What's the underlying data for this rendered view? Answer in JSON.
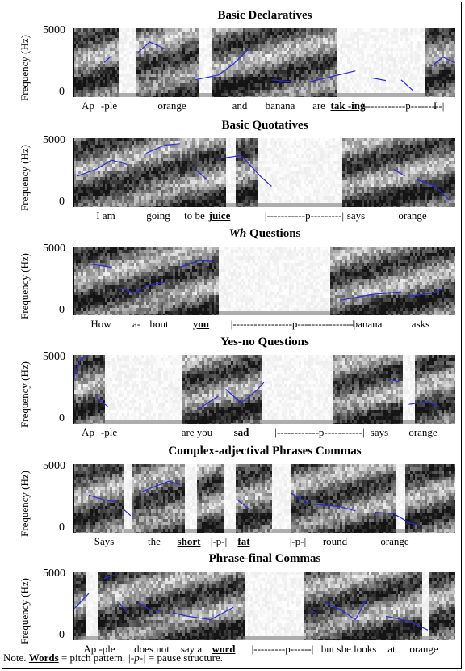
{
  "note": {
    "prefix": "Note.",
    "words": "Words",
    "eq1": "= pitch pattern.",
    "pause": "|-p-|",
    "eq2": "= pause structure."
  },
  "y_axis": {
    "label": "Frequency (Hz)",
    "top_tick": "5000",
    "bottom_tick": "0"
  },
  "panels": [
    {
      "title": "Basic Declaratives",
      "words": [
        {
          "text": "Ap",
          "emph": false
        },
        {
          "text": "-ple",
          "emph": false
        },
        {
          "text": "orange",
          "emph": false
        },
        {
          "text": "and",
          "emph": false
        },
        {
          "text": "banana",
          "emph": false
        },
        {
          "text": "are",
          "emph": false
        },
        {
          "text": "tak -ing",
          "emph": true
        },
        {
          "text": "|------------p---------|",
          "emph": false
        },
        {
          "text": "I",
          "emph": false
        }
      ]
    },
    {
      "title": "Basic Quotatives",
      "words": [
        {
          "text": "I am",
          "emph": false
        },
        {
          "text": "going",
          "emph": false
        },
        {
          "text": "to be",
          "emph": false
        },
        {
          "text": "juice",
          "emph": true
        },
        {
          "text": "|-----------p---------|",
          "emph": false
        },
        {
          "text": "says",
          "emph": false
        },
        {
          "text": "orange",
          "emph": false
        }
      ]
    },
    {
      "title": "Wh Questions",
      "words": [
        {
          "text": "How",
          "emph": false
        },
        {
          "text": "a-",
          "emph": false
        },
        {
          "text": "bout",
          "emph": false
        },
        {
          "text": "you",
          "emph": true
        },
        {
          "text": "|-----------------p----------------|",
          "emph": false
        },
        {
          "text": "banana",
          "emph": false
        },
        {
          "text": "asks",
          "emph": false
        }
      ]
    },
    {
      "title": "Yes-no Questions",
      "words": [
        {
          "text": "Ap",
          "emph": false
        },
        {
          "text": "-ple",
          "emph": false
        },
        {
          "text": "are you",
          "emph": false
        },
        {
          "text": "sad",
          "emph": true
        },
        {
          "text": "|------------p-----------|",
          "emph": false
        },
        {
          "text": "says",
          "emph": false
        },
        {
          "text": "orange",
          "emph": false
        }
      ]
    },
    {
      "title": "Complex-adjectival Phrases Commas",
      "words": [
        {
          "text": "Says",
          "emph": false
        },
        {
          "text": "the",
          "emph": false
        },
        {
          "text": "short",
          "emph": true
        },
        {
          "text": "|-p-|",
          "emph": false
        },
        {
          "text": "fat",
          "emph": true
        },
        {
          "text": "|-p-|",
          "emph": false
        },
        {
          "text": "round",
          "emph": false
        },
        {
          "text": "orange",
          "emph": false
        }
      ]
    },
    {
      "title": "Phrase-final Commas",
      "words": [
        {
          "text": "Ap -ple",
          "emph": false
        },
        {
          "text": "does not",
          "emph": false
        },
        {
          "text": "say a",
          "emph": false
        },
        {
          "text": "word",
          "emph": true
        },
        {
          "text": "|---------p------|",
          "emph": false
        },
        {
          "text": "but she looks",
          "emph": false
        },
        {
          "text": "at",
          "emph": false
        },
        {
          "text": "orange",
          "emph": false
        }
      ]
    }
  ],
  "colors": {
    "pitch_line": "#2b2bd6",
    "spectrogram_dark": "#111111",
    "background": "#ffffff"
  }
}
